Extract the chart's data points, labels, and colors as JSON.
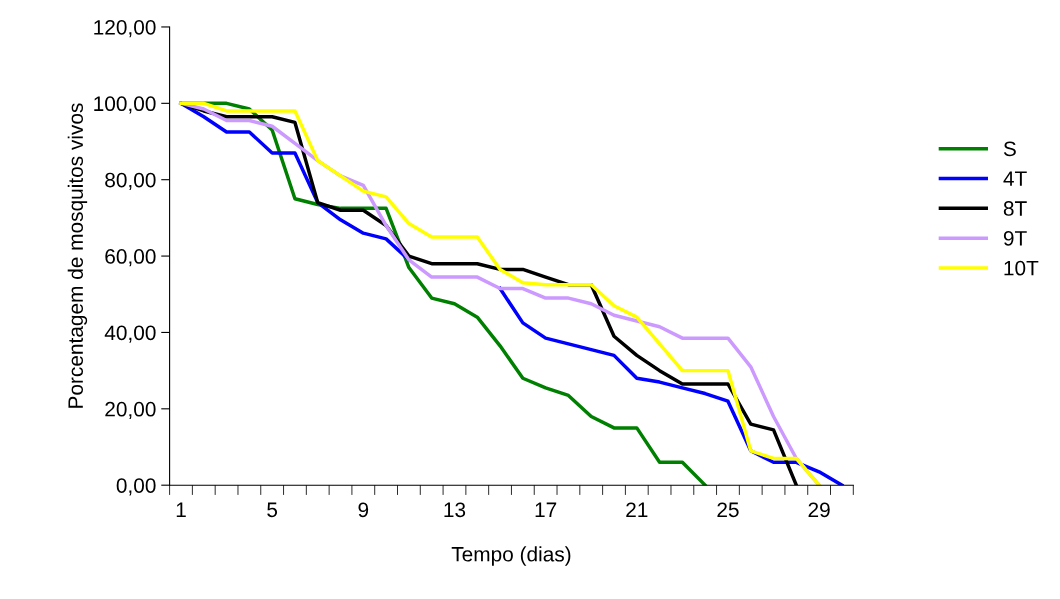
{
  "chart_data": {
    "type": "line",
    "xlabel": "Tempo (dias)",
    "ylabel": "Porcentagem de mosquitos vivos",
    "categories": [
      "1",
      null,
      null,
      null,
      "5",
      null,
      null,
      null,
      "9",
      null,
      null,
      null,
      "13",
      null,
      null,
      null,
      "17",
      null,
      null,
      null,
      "21",
      null,
      null,
      null,
      "25",
      null,
      null,
      null,
      "29",
      null
    ],
    "series": [
      {
        "name": "S",
        "color": "#008000",
        "values": [
          100,
          100,
          100,
          98.5,
          93,
          75,
          73.5,
          72.5,
          72.5,
          72.5,
          57,
          49,
          47.5,
          44,
          36.5,
          28,
          25.5,
          23.5,
          18,
          15,
          15,
          6,
          6,
          0,
          null,
          null,
          null,
          null,
          null,
          null
        ]
      },
      {
        "name": "4T",
        "color": "#0000ff",
        "values": [
          100,
          96.5,
          92.5,
          92.5,
          87,
          87,
          74,
          69.5,
          66,
          64.5,
          59,
          null,
          null,
          null,
          51.5,
          42.5,
          38.5,
          37,
          35.5,
          34,
          28,
          27,
          25.5,
          24,
          22,
          9,
          6,
          6,
          3.5,
          0
        ]
      },
      {
        "name": "8T",
        "color": "#000000",
        "values": [
          100,
          98,
          96.5,
          96.5,
          96.5,
          95,
          74,
          72,
          72,
          68,
          60,
          58,
          58,
          58,
          56.5,
          56.5,
          54.5,
          52.5,
          52.5,
          39,
          34,
          30,
          26.5,
          26.5,
          26.5,
          16,
          14.5,
          0,
          null,
          null
        ]
      },
      {
        "name": "9T",
        "color": "#cc99ff",
        "values": [
          100,
          98.5,
          95.5,
          95.5,
          94,
          89.5,
          85,
          81,
          78.5,
          68,
          59,
          54.5,
          54.5,
          54.5,
          51.5,
          51.5,
          49,
          49,
          47.5,
          44.5,
          43,
          41.5,
          38.5,
          38.5,
          38.5,
          31,
          18,
          7,
          0,
          null
        ]
      },
      {
        "name": "10T",
        "color": "#ffff00",
        "values": [
          100,
          100,
          98,
          98,
          98,
          98,
          85,
          81,
          77,
          75.5,
          68.5,
          65,
          65,
          65,
          56.5,
          53,
          52.5,
          52.5,
          52.5,
          47,
          44,
          37,
          30,
          30,
          30,
          9,
          7,
          7,
          0,
          null
        ]
      }
    ],
    "ylim": [
      0,
      120
    ],
    "yticks": [
      {
        "value": 0,
        "label": "0,00"
      },
      {
        "value": 20,
        "label": "20,00"
      },
      {
        "value": 40,
        "label": "40,00"
      },
      {
        "value": 60,
        "label": "60,00"
      },
      {
        "value": 80,
        "label": "80,00"
      },
      {
        "value": 100,
        "label": "100,00"
      },
      {
        "value": 120,
        "label": "120,00"
      }
    ],
    "legend": "right",
    "grid": false,
    "marker": "none",
    "line_style": "solid"
  }
}
